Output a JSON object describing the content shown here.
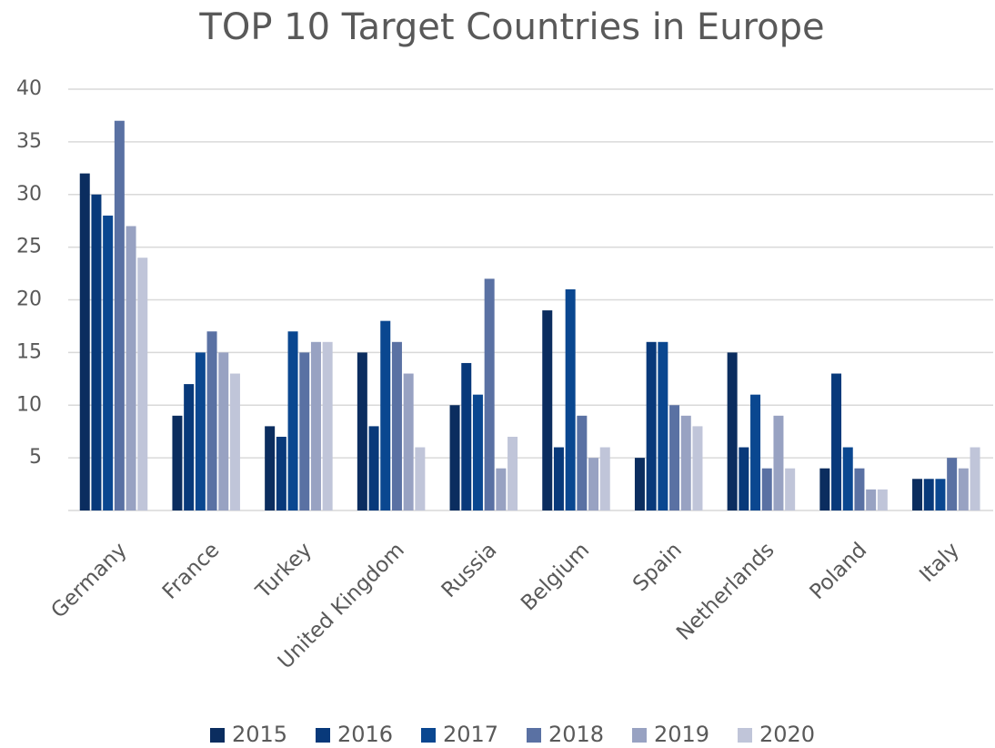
{
  "chart_data": {
    "type": "bar",
    "title": "TOP 10 Target Countries in Europe",
    "categories": [
      "Germany",
      "France",
      "Turkey",
      "United Kingdom",
      "Russia",
      "Belgium",
      "Spain",
      "Netherlands",
      "Poland",
      "Italy"
    ],
    "series": [
      {
        "name": "2015",
        "color": "#0b2d5f",
        "values": [
          32,
          9,
          8,
          15,
          10,
          19,
          5,
          15,
          4,
          3
        ]
      },
      {
        "name": "2016",
        "color": "#08397a",
        "values": [
          30,
          12,
          7,
          8,
          14,
          6,
          16,
          6,
          13,
          3
        ]
      },
      {
        "name": "2017",
        "color": "#0a4790",
        "values": [
          28,
          15,
          17,
          18,
          11,
          21,
          16,
          11,
          6,
          3
        ]
      },
      {
        "name": "2018",
        "color": "#5a71a3",
        "values": [
          37,
          17,
          15,
          16,
          22,
          9,
          10,
          4,
          4,
          5
        ]
      },
      {
        "name": "2019",
        "color": "#98a2c2",
        "values": [
          27,
          15,
          16,
          13,
          4,
          5,
          9,
          9,
          2,
          4
        ]
      },
      {
        "name": "2020",
        "color": "#c0c5d9",
        "values": [
          24,
          13,
          16,
          6,
          7,
          6,
          8,
          4,
          2,
          6
        ]
      }
    ],
    "ylim": [
      0,
      40
    ],
    "yticks": [
      5,
      10,
      15,
      20,
      25,
      30,
      35,
      40
    ],
    "grid": true,
    "legend": "bottom"
  }
}
